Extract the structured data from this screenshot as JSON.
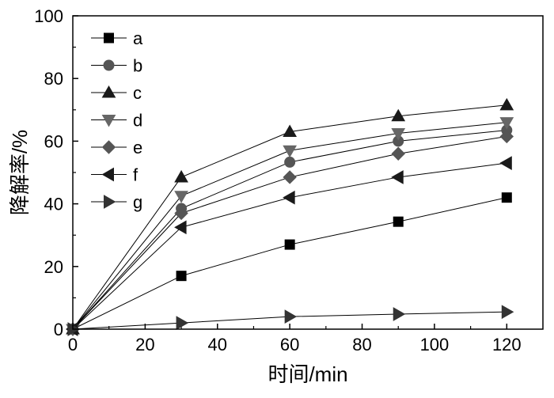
{
  "chart_data": {
    "type": "line",
    "title": "",
    "xlabel": "时间/min",
    "ylabel": "降解率/%",
    "xlim": [
      0,
      130
    ],
    "ylim": [
      0,
      100
    ],
    "x_ticks": [
      0,
      20,
      40,
      60,
      80,
      100,
      120
    ],
    "y_ticks": [
      0,
      20,
      40,
      60,
      80,
      100
    ],
    "x": [
      0,
      30,
      60,
      90,
      120
    ],
    "grid": false,
    "legend_position": "top-left",
    "series": [
      {
        "name": "a",
        "marker": "square",
        "color": "#000000",
        "values": [
          0,
          17,
          27,
          34.3,
          42
        ]
      },
      {
        "name": "b",
        "marker": "circle",
        "color": "#555555",
        "values": [
          0,
          38.5,
          53.3,
          60,
          63.5
        ]
      },
      {
        "name": "c",
        "marker": "triangle-up",
        "color": "#1a1a1a",
        "values": [
          0,
          48.5,
          63,
          68,
          71.5
        ]
      },
      {
        "name": "d",
        "marker": "triangle-down",
        "color": "#666666",
        "values": [
          0,
          42.5,
          57,
          62.5,
          66
        ]
      },
      {
        "name": "e",
        "marker": "diamond",
        "color": "#555555",
        "values": [
          0,
          37,
          48.5,
          56,
          61.5
        ]
      },
      {
        "name": "f",
        "marker": "triangle-left",
        "color": "#1a1a1a",
        "values": [
          0,
          32.5,
          42,
          48.5,
          53
        ]
      },
      {
        "name": "g",
        "marker": "triangle-right",
        "color": "#333333",
        "values": [
          0,
          2,
          4,
          4.8,
          5.5
        ]
      }
    ]
  }
}
